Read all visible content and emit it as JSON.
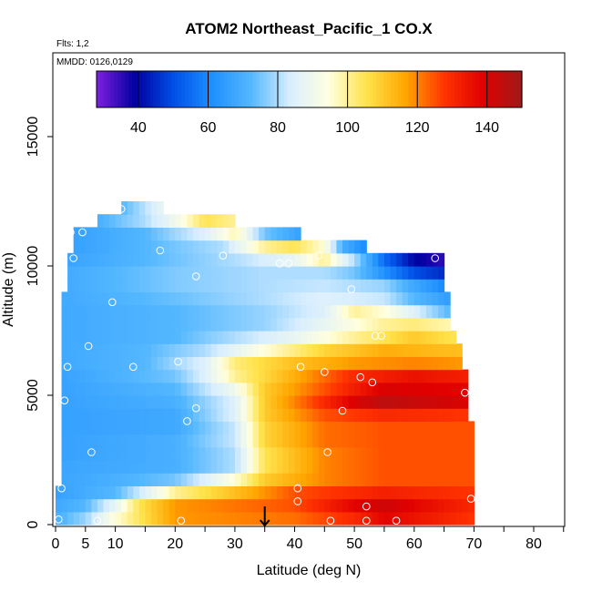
{
  "chart_data": {
    "type": "heatmap",
    "title": "ATOM2 Northeast_Pacific_1 CO.X",
    "flights_label": "Flts: 1,2",
    "dates_label": "MMDD: 0126,0129",
    "xlabel": "Latitude (deg N)",
    "ylabel": "Altitude (m)",
    "xlim": [
      0,
      85
    ],
    "ylim": [
      0,
      17500
    ],
    "x_ticks": [
      0,
      5,
      10,
      20,
      30,
      40,
      50,
      60,
      70,
      80
    ],
    "x_tick_labels": [
      "0",
      "5",
      "10",
      "20",
      "30",
      "40",
      "50",
      "60",
      "70",
      "80"
    ],
    "y_ticks": [
      0,
      5000,
      10000,
      15000
    ],
    "y_tick_labels": [
      "0",
      "5000",
      "10000",
      "15000"
    ],
    "colorbar": {
      "range": [
        28,
        150
      ],
      "ticks": [
        40,
        60,
        80,
        100,
        120,
        140
      ],
      "tick_labels": [
        "40",
        "60",
        "80",
        "100",
        "120",
        "140"
      ],
      "colors": [
        "#7f1fe0",
        "#0000a0",
        "#0050e8",
        "#1e90ff",
        "#55b8ff",
        "#d8eeff",
        "#ffffe0",
        "#ffe24a",
        "#ffa500",
        "#ff3300",
        "#e00000",
        "#a01a1a"
      ]
    },
    "arrow_marker_latitude": 35,
    "layers": [
      {
        "bottom": 0,
        "top": 500,
        "lat_start": 0,
        "lat_end": 70,
        "profile": [
          [
            0,
            70
          ],
          [
            5,
            78
          ],
          [
            10,
            95
          ],
          [
            20,
            118
          ],
          [
            40,
            122
          ],
          [
            50,
            130
          ],
          [
            55,
            138
          ],
          [
            70,
            128
          ]
        ]
      },
      {
        "bottom": 500,
        "top": 1000,
        "lat_start": 0,
        "lat_end": 70,
        "profile": [
          [
            0,
            68
          ],
          [
            5,
            72
          ],
          [
            10,
            88
          ],
          [
            14,
            105
          ],
          [
            20,
            118
          ],
          [
            40,
            125
          ],
          [
            50,
            138
          ],
          [
            55,
            142
          ],
          [
            70,
            130
          ]
        ]
      },
      {
        "bottom": 1000,
        "top": 1500,
        "lat_start": 0,
        "lat_end": 70,
        "profile": [
          [
            0,
            66
          ],
          [
            10,
            72
          ],
          [
            15,
            85
          ],
          [
            20,
            100
          ],
          [
            30,
            112
          ],
          [
            40,
            125
          ],
          [
            55,
            132
          ],
          [
            70,
            128
          ]
        ]
      },
      {
        "bottom": 1500,
        "top": 2000,
        "lat_start": 1,
        "lat_end": 70,
        "profile": [
          [
            0,
            67
          ],
          [
            10,
            70
          ],
          [
            20,
            75
          ],
          [
            30,
            95
          ],
          [
            35,
            110
          ],
          [
            45,
            120
          ],
          [
            55,
            125
          ],
          [
            70,
            125
          ]
        ]
      },
      {
        "bottom": 2000,
        "top": 2500,
        "lat_start": 1,
        "lat_end": 70,
        "profile": [
          [
            0,
            67
          ],
          [
            20,
            70
          ],
          [
            30,
            80
          ],
          [
            35,
            105
          ],
          [
            45,
            120
          ],
          [
            55,
            125
          ],
          [
            70,
            125
          ]
        ]
      },
      {
        "bottom": 2500,
        "top": 3000,
        "lat_start": 1,
        "lat_end": 70,
        "profile": [
          [
            0,
            66
          ],
          [
            20,
            70
          ],
          [
            30,
            80
          ],
          [
            35,
            105
          ],
          [
            45,
            120
          ],
          [
            55,
            125
          ],
          [
            70,
            125
          ]
        ]
      },
      {
        "bottom": 3000,
        "top": 3500,
        "lat_start": 1,
        "lat_end": 70,
        "profile": [
          [
            0,
            66
          ],
          [
            20,
            70
          ],
          [
            30,
            82
          ],
          [
            35,
            108
          ],
          [
            45,
            122
          ],
          [
            55,
            125
          ],
          [
            70,
            125
          ]
        ]
      },
      {
        "bottom": 3500,
        "top": 4000,
        "lat_start": 1,
        "lat_end": 70,
        "profile": [
          [
            0,
            66
          ],
          [
            20,
            68
          ],
          [
            30,
            82
          ],
          [
            35,
            108
          ],
          [
            45,
            122
          ],
          [
            55,
            125
          ],
          [
            70,
            125
          ]
        ]
      },
      {
        "bottom": 4000,
        "top": 4500,
        "lat_start": 1,
        "lat_end": 69,
        "profile": [
          [
            0,
            66
          ],
          [
            20,
            68
          ],
          [
            30,
            85
          ],
          [
            35,
            110
          ],
          [
            45,
            125
          ],
          [
            55,
            130
          ],
          [
            70,
            128
          ]
        ]
      },
      {
        "bottom": 4500,
        "top": 5000,
        "lat_start": 1,
        "lat_end": 69,
        "profile": [
          [
            0,
            66
          ],
          [
            20,
            70
          ],
          [
            30,
            85
          ],
          [
            35,
            110
          ],
          [
            45,
            130
          ],
          [
            50,
            140
          ],
          [
            55,
            145
          ],
          [
            69,
            140
          ]
        ]
      },
      {
        "bottom": 5000,
        "top": 5500,
        "lat_start": 1,
        "lat_end": 69,
        "profile": [
          [
            0,
            66
          ],
          [
            20,
            72
          ],
          [
            30,
            90
          ],
          [
            35,
            110
          ],
          [
            45,
            125
          ],
          [
            55,
            140
          ],
          [
            69,
            138
          ]
        ]
      },
      {
        "bottom": 5500,
        "top": 6000,
        "lat_start": 1,
        "lat_end": 69,
        "profile": [
          [
            0,
            66
          ],
          [
            20,
            75
          ],
          [
            25,
            85
          ],
          [
            30,
            100
          ],
          [
            40,
            115
          ],
          [
            50,
            130
          ],
          [
            60,
            135
          ],
          [
            69,
            132
          ]
        ]
      },
      {
        "bottom": 6000,
        "top": 6500,
        "lat_start": 1,
        "lat_end": 68,
        "profile": [
          [
            0,
            68
          ],
          [
            15,
            72
          ],
          [
            25,
            85
          ],
          [
            30,
            102
          ],
          [
            40,
            112
          ],
          [
            50,
            118
          ],
          [
            60,
            120
          ],
          [
            68,
            118
          ]
        ]
      },
      {
        "bottom": 6500,
        "top": 7000,
        "lat_start": 1,
        "lat_end": 68,
        "profile": [
          [
            0,
            68
          ],
          [
            15,
            72
          ],
          [
            25,
            80
          ],
          [
            35,
            95
          ],
          [
            45,
            108
          ],
          [
            55,
            115
          ],
          [
            68,
            112
          ]
        ]
      },
      {
        "bottom": 7000,
        "top": 7500,
        "lat_start": 1,
        "lat_end": 67,
        "profile": [
          [
            0,
            68
          ],
          [
            20,
            72
          ],
          [
            30,
            80
          ],
          [
            40,
            88
          ],
          [
            50,
            100
          ],
          [
            60,
            110
          ],
          [
            67,
            105
          ]
        ]
      },
      {
        "bottom": 7500,
        "top": 8000,
        "lat_start": 1,
        "lat_end": 66,
        "profile": [
          [
            0,
            68
          ],
          [
            20,
            72
          ],
          [
            35,
            78
          ],
          [
            45,
            88
          ],
          [
            55,
            100
          ],
          [
            60,
            102
          ],
          [
            66,
            98
          ]
        ]
      },
      {
        "bottom": 8000,
        "top": 8500,
        "lat_start": 1,
        "lat_end": 66,
        "profile": [
          [
            0,
            68
          ],
          [
            20,
            72
          ],
          [
            35,
            78
          ],
          [
            45,
            85
          ],
          [
            50,
            100
          ],
          [
            55,
            95
          ],
          [
            60,
            85
          ],
          [
            66,
            72
          ]
        ]
      },
      {
        "bottom": 8500,
        "top": 9000,
        "lat_start": 1,
        "lat_end": 66,
        "profile": [
          [
            0,
            68
          ],
          [
            20,
            74
          ],
          [
            35,
            80
          ],
          [
            45,
            85
          ],
          [
            55,
            82
          ],
          [
            60,
            72
          ],
          [
            66,
            65
          ]
        ]
      },
      {
        "bottom": 9000,
        "top": 9500,
        "lat_start": 2,
        "lat_end": 65,
        "profile": [
          [
            0,
            68
          ],
          [
            20,
            76
          ],
          [
            35,
            80
          ],
          [
            45,
            82
          ],
          [
            55,
            78
          ],
          [
            60,
            68
          ],
          [
            65,
            60
          ]
        ]
      },
      {
        "bottom": 9500,
        "top": 10000,
        "lat_start": 2,
        "lat_end": 65,
        "profile": [
          [
            0,
            68
          ],
          [
            20,
            76
          ],
          [
            35,
            80
          ],
          [
            45,
            80
          ],
          [
            50,
            75
          ],
          [
            55,
            62
          ],
          [
            60,
            50
          ],
          [
            65,
            45
          ]
        ]
      },
      {
        "bottom": 10000,
        "top": 10500,
        "lat_start": 2,
        "lat_end": 65,
        "profile": [
          [
            0,
            66
          ],
          [
            15,
            72
          ],
          [
            30,
            80
          ],
          [
            40,
            88
          ],
          [
            45,
            100
          ],
          [
            50,
            80
          ],
          [
            55,
            55
          ],
          [
            60,
            40
          ],
          [
            65,
            35
          ]
        ]
      },
      {
        "bottom": 10500,
        "top": 11000,
        "lat_start": 3,
        "lat_end": 52,
        "profile": [
          [
            3,
            66
          ],
          [
            15,
            72
          ],
          [
            28,
            80
          ],
          [
            35,
            100
          ],
          [
            40,
            105
          ],
          [
            45,
            95
          ],
          [
            48,
            70
          ],
          [
            52,
            60
          ]
        ]
      },
      {
        "bottom": 11000,
        "top": 11500,
        "lat_start": 3,
        "lat_end": 41,
        "profile": [
          [
            3,
            66
          ],
          [
            15,
            72
          ],
          [
            25,
            85
          ],
          [
            30,
            98
          ],
          [
            35,
            75
          ],
          [
            41,
            66
          ]
        ]
      },
      {
        "bottom": 11500,
        "top": 12000,
        "lat_start": 7,
        "lat_end": 30,
        "profile": [
          [
            7,
            70
          ],
          [
            15,
            80
          ],
          [
            20,
            90
          ],
          [
            25,
            105
          ],
          [
            30,
            100
          ]
        ]
      },
      {
        "bottom": 12000,
        "top": 12500,
        "lat_start": 11,
        "lat_end": 18,
        "profile": [
          [
            11,
            72
          ],
          [
            18,
            88
          ]
        ]
      }
    ],
    "sample_points": [
      [
        0.5,
        200
      ],
      [
        7,
        150
      ],
      [
        21,
        150
      ],
      [
        46,
        150
      ],
      [
        52,
        150
      ],
      [
        57,
        150
      ],
      [
        1,
        1400
      ],
      [
        40.5,
        1400
      ],
      [
        69.5,
        1000
      ],
      [
        40.5,
        900
      ],
      [
        52,
        700
      ],
      [
        6,
        2800
      ],
      [
        45.5,
        2800
      ],
      [
        23.5,
        4500
      ],
      [
        22,
        4000
      ],
      [
        1.5,
        4800
      ],
      [
        48,
        4400
      ],
      [
        68.5,
        5100
      ],
      [
        53,
        5500
      ],
      [
        51,
        5700
      ],
      [
        45,
        5900
      ],
      [
        13,
        6100
      ],
      [
        2,
        6100
      ],
      [
        20.5,
        6300
      ],
      [
        41,
        6100
      ],
      [
        5.5,
        6900
      ],
      [
        53.5,
        7300
      ],
      [
        54.5,
        7300
      ],
      [
        9.5,
        8600
      ],
      [
        49.5,
        9100
      ],
      [
        23.5,
        9600
      ],
      [
        3,
        10300
      ],
      [
        17.5,
        10600
      ],
      [
        28,
        10400
      ],
      [
        37.5,
        10100
      ],
      [
        39,
        10100
      ],
      [
        44,
        10400
      ],
      [
        63.5,
        10300
      ],
      [
        2.5,
        11300
      ],
      [
        4.5,
        11300
      ],
      [
        11,
        12200
      ]
    ]
  }
}
